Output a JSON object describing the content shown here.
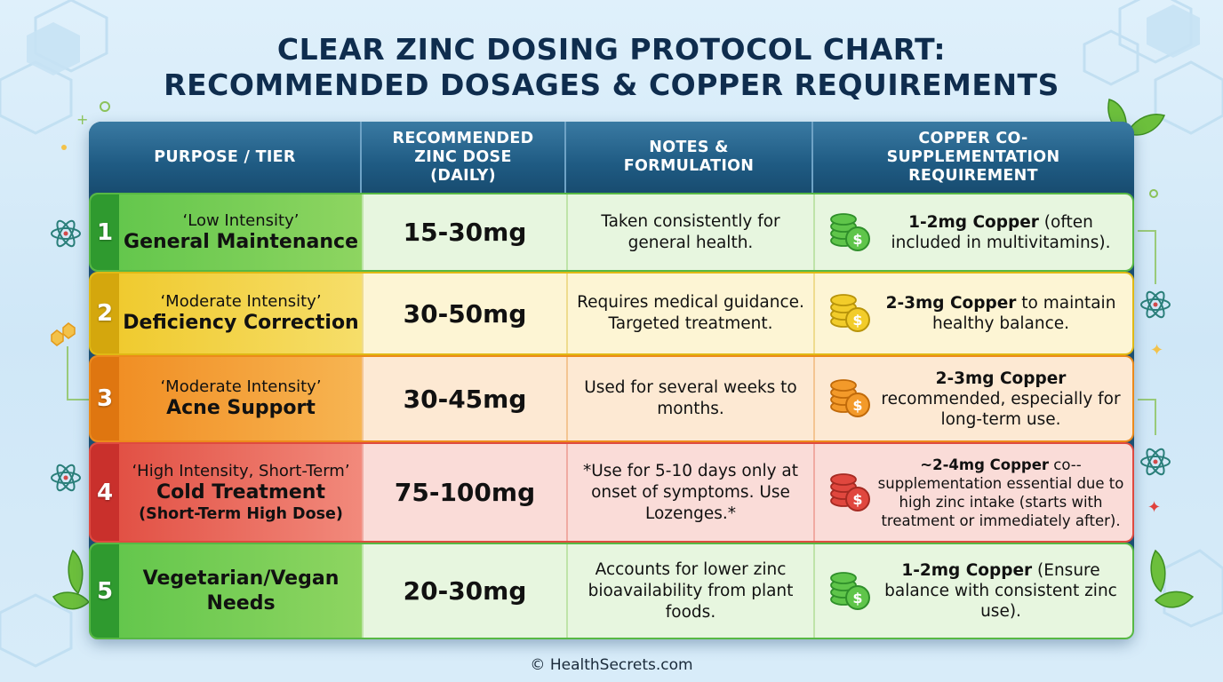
{
  "title_line1": "CLEAR ZINC DOSING PROTOCOL CHART:",
  "title_line2": "RECOMMENDED DOSAGES & COPPER REQUIREMENTS",
  "footer": "© HealthSecrets.com",
  "chart_data": {
    "type": "table",
    "columns": [
      "PURPOSE / TIER",
      "RECOMMENDED ZINC DOSE (DAILY)",
      "NOTES & FORMULATION",
      "COPPER CO-SUPPLEMENTATION REQUIREMENT"
    ],
    "rows": [
      {
        "number": "1",
        "intensity": "‘Low Intensity’",
        "purpose": "General Maintenance",
        "purpose_detail": "",
        "dose": "15-30mg",
        "notes": "Taken consistently for general health.",
        "copper_bold": "1-2mg Copper",
        "copper_rest": " (often included in multivitamins).",
        "color": "#4fbd3e"
      },
      {
        "number": "2",
        "intensity": "‘Moderate Intensity’",
        "purpose": "Deficiency Correction",
        "purpose_detail": "",
        "dose": "30-50mg",
        "notes": "Requires medical guidance. Targeted treatment.",
        "copper_bold": "2-3mg Copper",
        "copper_rest": " to maintain healthy balance.",
        "color": "#e8c21c"
      },
      {
        "number": "3",
        "intensity": "‘Moderate Intensity’",
        "purpose": "Acne Support",
        "purpose_detail": "",
        "dose": "30-45mg",
        "notes": "Used for several weeks to months.",
        "copper_bold": "2-3mg Copper",
        "copper_rest": " recommended, especially for long-term use.",
        "color": "#ef8c1c"
      },
      {
        "number": "4",
        "intensity": "‘High Intensity, Short-Term’",
        "purpose": "Cold Treatment",
        "purpose_detail": "(Short-Term High Dose)",
        "dose": "75-100mg",
        "notes": "*Use for 5-10 days only at onset of symptoms. Use Lozenges.*",
        "copper_bold": "~2-4mg Copper",
        "copper_rest": " co--supplementation essential due to high zinc intake (starts with treatment or immediately after).",
        "color": "#e0413c"
      },
      {
        "number": "5",
        "intensity": "",
        "purpose": "Vegetarian/Vegan Needs",
        "purpose_detail": "",
        "dose": "20-30mg",
        "notes": "Accounts for lower zinc bioavailability from plant foods.",
        "copper_bold": "1-2mg Copper",
        "copper_rest": " (Ensure balance with consistent zinc use).",
        "color": "#4fbd3e"
      }
    ]
  },
  "icons": {
    "coin": "coin-stack-icon",
    "atom": "atom-icon",
    "leaf": "leaf-icon",
    "hexagon": "hexagon-pattern"
  }
}
